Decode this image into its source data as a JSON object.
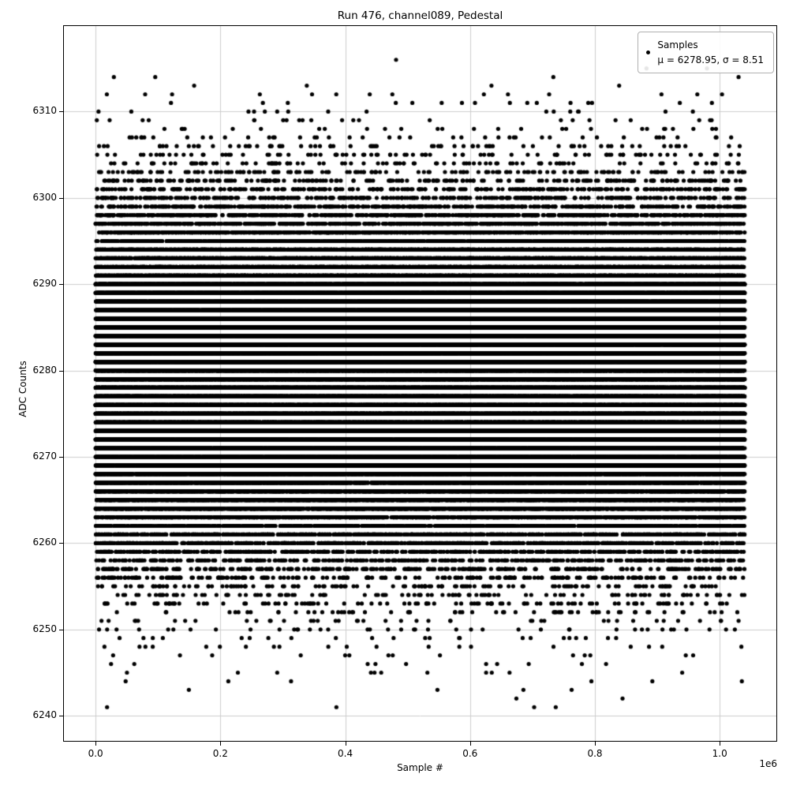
{
  "chart_data": {
    "type": "scatter",
    "title": "Run 476, channel089, Pedestal",
    "xlabel": "Sample #",
    "ylabel": "ADC Counts",
    "x_offset_label": "1e6",
    "grid": true,
    "marker_color": "#000000",
    "legend": {
      "position": "upper right",
      "entries": [
        {
          "marker": "dot",
          "color": "#000000",
          "label_line1": "Samples",
          "label_line2": "μ = 6278.95, σ = 8.51"
        }
      ]
    },
    "stats": {
      "mean": 6278.95,
      "sigma": 8.51
    },
    "distribution": "gaussian integer-quantized ADC counts, dense band ~6250-6306 with sparse outliers",
    "x_range": [
      0,
      1040000
    ],
    "observed_y_min": 6241,
    "observed_y_max": 6316,
    "xlim": [
      -52000,
      1092000
    ],
    "ylim": [
      6237,
      6320
    ],
    "xticks": [
      {
        "value": 0,
        "label": "0.0"
      },
      {
        "value": 200000,
        "label": "0.2"
      },
      {
        "value": 400000,
        "label": "0.4"
      },
      {
        "value": 600000,
        "label": "0.6"
      },
      {
        "value": 800000,
        "label": "0.8"
      },
      {
        "value": 1000000,
        "label": "1.0"
      }
    ],
    "yticks": [
      {
        "value": 6240,
        "label": "6240"
      },
      {
        "value": 6250,
        "label": "6250"
      },
      {
        "value": 6260,
        "label": "6260"
      },
      {
        "value": 6270,
        "label": "6270"
      },
      {
        "value": 6280,
        "label": "6280"
      },
      {
        "value": 6290,
        "label": "6290"
      },
      {
        "value": 6300,
        "label": "6300"
      },
      {
        "value": 6310,
        "label": "6310"
      }
    ]
  }
}
